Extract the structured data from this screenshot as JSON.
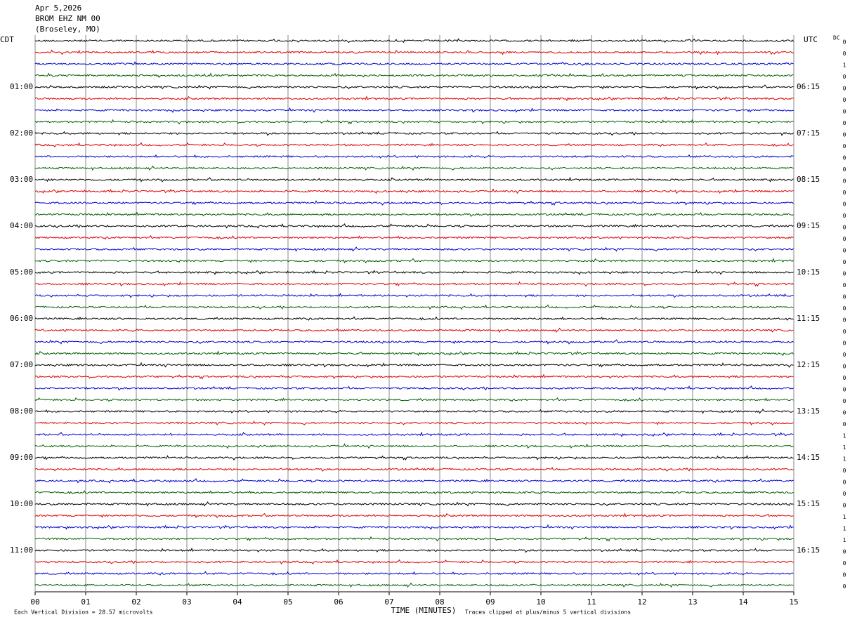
{
  "header": {
    "date": "Apr 5,2026",
    "station": "BROM EHZ NM 00",
    "location": "(Broseley, MO)"
  },
  "left_axis": {
    "title": "CDT",
    "labels": [
      "01:00",
      "02:00",
      "03:00",
      "04:00",
      "05:00",
      "06:00",
      "07:00",
      "08:00",
      "09:00",
      "10:00",
      "11:00"
    ]
  },
  "right_axis": {
    "title": "UTC",
    "labels": [
      "06:15",
      "07:15",
      "08:15",
      "09:15",
      "10:15",
      "11:15",
      "12:15",
      "13:15",
      "14:15",
      "15:15",
      "16:15"
    ]
  },
  "dc": {
    "title": "DC",
    "values": [
      0,
      0,
      1,
      0,
      0,
      0,
      0,
      0,
      0,
      0,
      0,
      0,
      0,
      0,
      0,
      0,
      0,
      0,
      0,
      0,
      0,
      0,
      0,
      0,
      0,
      0,
      0,
      0,
      0,
      0,
      0,
      0,
      0,
      0,
      1,
      1,
      1,
      0,
      0,
      0,
      0,
      1,
      1,
      1,
      0,
      0,
      0,
      0
    ]
  },
  "trace_colors": [
    "#000000",
    "#e00000",
    "#0000d0",
    "#006000"
  ],
  "x_axis": {
    "ticks": [
      "00",
      "01",
      "02",
      "03",
      "04",
      "05",
      "06",
      "07",
      "08",
      "09",
      "10",
      "11",
      "12",
      "13",
      "14",
      "15"
    ],
    "title": "TIME (MINUTES)"
  },
  "footer": {
    "scale": "Each Vertical Division =   28.57 microvolts",
    "clip": "Traces clipped at plus/minus 5 vertical divisions"
  }
}
